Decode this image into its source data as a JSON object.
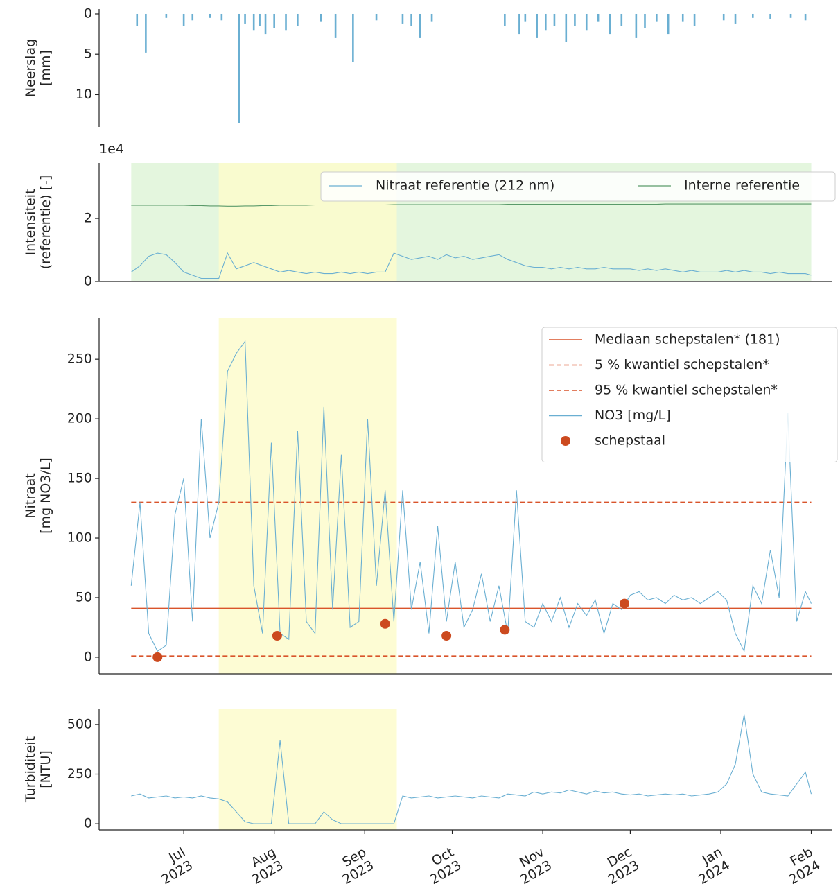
{
  "chart_data": [
    {
      "type": "bar",
      "ylabel": "Neerslag\n[mm]",
      "y_inverted": true,
      "ylim": [
        -0.6,
        14
      ],
      "yticks": [
        0,
        5,
        10
      ],
      "xlim": [
        "2023-06-02",
        "2024-02-08"
      ],
      "color": "#6aafd2",
      "x": [
        "2023-06-15",
        "2023-06-18",
        "2023-06-25",
        "2023-07-01",
        "2023-07-04",
        "2023-07-10",
        "2023-07-14",
        "2023-07-20",
        "2023-07-22",
        "2023-07-25",
        "2023-07-27",
        "2023-07-29",
        "2023-08-01",
        "2023-08-05",
        "2023-08-09",
        "2023-08-17",
        "2023-08-22",
        "2023-08-28",
        "2023-09-05",
        "2023-09-14",
        "2023-09-17",
        "2023-09-20",
        "2023-09-24",
        "2023-10-19",
        "2023-10-24",
        "2023-10-26",
        "2023-10-30",
        "2023-11-02",
        "2023-11-05",
        "2023-11-09",
        "2023-11-12",
        "2023-11-16",
        "2023-11-20",
        "2023-11-24",
        "2023-11-28",
        "2023-12-03",
        "2023-12-06",
        "2023-12-10",
        "2023-12-14",
        "2023-12-19",
        "2023-12-23",
        "2024-01-02",
        "2024-01-06",
        "2024-01-12",
        "2024-01-18",
        "2024-01-25",
        "2024-01-30"
      ],
      "values": [
        1.5,
        4.8,
        0.5,
        1.5,
        0.8,
        0.5,
        0.8,
        13.5,
        1.2,
        2,
        1.5,
        2.5,
        1.8,
        2,
        1.5,
        1,
        3,
        6,
        0.8,
        1.2,
        1.5,
        3,
        1,
        1.5,
        2.5,
        1,
        3,
        2,
        1.5,
        3.5,
        1.5,
        2,
        1,
        2.5,
        1.5,
        3,
        1.8,
        1,
        2.5,
        1,
        1.5,
        0.8,
        1.2,
        0.5,
        0.6,
        0.5,
        0.8
      ]
    },
    {
      "type": "line",
      "ylabel": "Intensiteit\n(referentie) [-]",
      "y_offset_label": "1e4",
      "ylim": [
        0,
        3.76
      ],
      "yticks": [
        0,
        2
      ],
      "xlim": [
        "2023-06-02",
        "2024-02-08"
      ],
      "legend": "upper right",
      "shaded_spans": [
        {
          "start": "2023-06-13",
          "end": "2024-02-01",
          "color": "#dff5d8"
        },
        {
          "start": "2023-07-13",
          "end": "2023-09-12",
          "color": "#fdfccc"
        }
      ],
      "x": [
        "2023-06-13",
        "2023-06-16",
        "2023-06-19",
        "2023-06-22",
        "2023-06-25",
        "2023-06-28",
        "2023-07-01",
        "2023-07-04",
        "2023-07-07",
        "2023-07-10",
        "2023-07-13",
        "2023-07-16",
        "2023-07-19",
        "2023-07-22",
        "2023-07-25",
        "2023-07-28",
        "2023-07-31",
        "2023-08-03",
        "2023-08-06",
        "2023-08-09",
        "2023-08-12",
        "2023-08-15",
        "2023-08-18",
        "2023-08-21",
        "2023-08-24",
        "2023-08-27",
        "2023-08-30",
        "2023-09-02",
        "2023-09-05",
        "2023-09-08",
        "2023-09-11",
        "2023-09-14",
        "2023-09-17",
        "2023-09-20",
        "2023-09-23",
        "2023-09-26",
        "2023-09-29",
        "2023-10-02",
        "2023-10-05",
        "2023-10-08",
        "2023-10-11",
        "2023-10-14",
        "2023-10-17",
        "2023-10-20",
        "2023-10-23",
        "2023-10-26",
        "2023-10-29",
        "2023-11-01",
        "2023-11-04",
        "2023-11-07",
        "2023-11-10",
        "2023-11-13",
        "2023-11-16",
        "2023-11-19",
        "2023-11-22",
        "2023-11-25",
        "2023-11-28",
        "2023-12-01",
        "2023-12-04",
        "2023-12-07",
        "2023-12-10",
        "2023-12-13",
        "2023-12-16",
        "2023-12-19",
        "2023-12-22",
        "2023-12-25",
        "2023-12-28",
        "2023-12-31",
        "2024-01-03",
        "2024-01-06",
        "2024-01-09",
        "2024-01-12",
        "2024-01-15",
        "2024-01-18",
        "2024-01-21",
        "2024-01-24",
        "2024-01-27",
        "2024-01-30",
        "2024-02-01"
      ],
      "series": [
        {
          "name": "Nitraat referentie (212 nm)",
          "color": "#6aafd2",
          "values": [
            0.3,
            0.5,
            0.8,
            0.9,
            0.85,
            0.6,
            0.3,
            0.2,
            0.1,
            0.1,
            0.1,
            0.9,
            0.4,
            0.5,
            0.6,
            0.5,
            0.4,
            0.3,
            0.35,
            0.3,
            0.25,
            0.3,
            0.25,
            0.25,
            0.3,
            0.25,
            0.3,
            0.25,
            0.3,
            0.3,
            0.9,
            0.8,
            0.7,
            0.75,
            0.8,
            0.7,
            0.85,
            0.75,
            0.8,
            0.7,
            0.75,
            0.8,
            0.85,
            0.7,
            0.6,
            0.5,
            0.45,
            0.45,
            0.4,
            0.45,
            0.4,
            0.45,
            0.4,
            0.4,
            0.45,
            0.4,
            0.4,
            0.4,
            0.35,
            0.4,
            0.35,
            0.4,
            0.35,
            0.3,
            0.35,
            0.3,
            0.3,
            0.3,
            0.35,
            0.3,
            0.35,
            0.3,
            0.3,
            0.25,
            0.3,
            0.25,
            0.25,
            0.25,
            0.2
          ]
        },
        {
          "name": "Interne referentie",
          "color": "#5a9a6a",
          "values": [
            2.42,
            2.42,
            2.42,
            2.42,
            2.42,
            2.42,
            2.42,
            2.41,
            2.41,
            2.4,
            2.4,
            2.39,
            2.39,
            2.4,
            2.4,
            2.41,
            2.41,
            2.42,
            2.42,
            2.42,
            2.42,
            2.43,
            2.43,
            2.43,
            2.43,
            2.43,
            2.43,
            2.43,
            2.43,
            2.43,
            2.44,
            2.44,
            2.44,
            2.44,
            2.44,
            2.44,
            2.44,
            2.44,
            2.44,
            2.44,
            2.44,
            2.44,
            2.44,
            2.45,
            2.45,
            2.45,
            2.45,
            2.45,
            2.45,
            2.45,
            2.45,
            2.45,
            2.45,
            2.45,
            2.45,
            2.45,
            2.45,
            2.45,
            2.45,
            2.45,
            2.45,
            2.46,
            2.46,
            2.46,
            2.46,
            2.46,
            2.46,
            2.46,
            2.46,
            2.46,
            2.46,
            2.46,
            2.46,
            2.46,
            2.46,
            2.46,
            2.46,
            2.46,
            2.46
          ]
        }
      ]
    },
    {
      "type": "line",
      "ylabel": "Nitraat\n[mg NO3/L]",
      "ylim": [
        -14,
        285
      ],
      "yticks": [
        0,
        50,
        100,
        150,
        200,
        250
      ],
      "xlim": [
        "2023-06-02",
        "2024-02-08"
      ],
      "legend": "upper right",
      "shaded_spans": [
        {
          "start": "2023-07-13",
          "end": "2023-09-12",
          "color": "#fdfccc"
        }
      ],
      "reference_lines": [
        {
          "name": "Mediaan schepstalen* (181)",
          "value": 41,
          "color": "#d9542b",
          "dashed": false
        },
        {
          "name": "5 % kwantiel schepstalen*",
          "value": 1,
          "color": "#d9542b",
          "dashed": true
        },
        {
          "name": "95 % kwantiel schepstalen*",
          "value": 130,
          "color": "#d9542b",
          "dashed": true
        }
      ],
      "x": [
        "2023-06-13",
        "2023-06-16",
        "2023-06-19",
        "2023-06-22",
        "2023-06-25",
        "2023-06-28",
        "2023-07-01",
        "2023-07-04",
        "2023-07-07",
        "2023-07-10",
        "2023-07-13",
        "2023-07-16",
        "2023-07-19",
        "2023-07-22",
        "2023-07-25",
        "2023-07-28",
        "2023-07-31",
        "2023-08-03",
        "2023-08-06",
        "2023-08-09",
        "2023-08-12",
        "2023-08-15",
        "2023-08-18",
        "2023-08-21",
        "2023-08-24",
        "2023-08-27",
        "2023-08-30",
        "2023-09-02",
        "2023-09-05",
        "2023-09-08",
        "2023-09-11",
        "2023-09-14",
        "2023-09-17",
        "2023-09-20",
        "2023-09-23",
        "2023-09-26",
        "2023-09-29",
        "2023-10-02",
        "2023-10-05",
        "2023-10-08",
        "2023-10-11",
        "2023-10-14",
        "2023-10-17",
        "2023-10-20",
        "2023-10-23",
        "2023-10-26",
        "2023-10-29",
        "2023-11-01",
        "2023-11-04",
        "2023-11-07",
        "2023-11-10",
        "2023-11-13",
        "2023-11-16",
        "2023-11-19",
        "2023-11-22",
        "2023-11-25",
        "2023-11-28",
        "2023-12-01",
        "2023-12-04",
        "2023-12-07",
        "2023-12-10",
        "2023-12-13",
        "2023-12-16",
        "2023-12-19",
        "2023-12-22",
        "2023-12-25",
        "2023-12-28",
        "2023-12-31",
        "2024-01-03",
        "2024-01-06",
        "2024-01-09",
        "2024-01-12",
        "2024-01-15",
        "2024-01-18",
        "2024-01-21",
        "2024-01-24",
        "2024-01-27",
        "2024-01-30",
        "2024-02-01"
      ],
      "series": [
        {
          "name": "NO3 [mg/L]",
          "color": "#6aafd2",
          "values": [
            60,
            130,
            20,
            5,
            10,
            120,
            150,
            30,
            200,
            100,
            130,
            240,
            255,
            265,
            60,
            20,
            180,
            20,
            15,
            190,
            30,
            20,
            210,
            40,
            170,
            25,
            30,
            200,
            60,
            140,
            30,
            140,
            40,
            80,
            20,
            110,
            30,
            80,
            25,
            40,
            70,
            30,
            60,
            20,
            140,
            30,
            25,
            45,
            30,
            50,
            25,
            45,
            35,
            48,
            20,
            45,
            40,
            52,
            55,
            48,
            50,
            45,
            52,
            48,
            50,
            45,
            50,
            55,
            48,
            20,
            5,
            60,
            45,
            90,
            50,
            205,
            30,
            55,
            45
          ]
        }
      ],
      "points": {
        "name": "schepstaal",
        "color": "#cc4a1f",
        "x": [
          "2023-06-22",
          "2023-08-02",
          "2023-09-08",
          "2023-09-29",
          "2023-10-19",
          "2023-11-29"
        ],
        "values": [
          0,
          18,
          28,
          18,
          23,
          45
        ]
      }
    },
    {
      "type": "line",
      "ylabel": "Turbiditeit\n[NTU]",
      "ylim": [
        -31,
        580
      ],
      "yticks": [
        0,
        250,
        500
      ],
      "xlim": [
        "2023-06-02",
        "2024-02-08"
      ],
      "xticks": [
        {
          "value": "2023-07-01",
          "label": "Jul\n2023"
        },
        {
          "value": "2023-08-01",
          "label": "Aug\n2023"
        },
        {
          "value": "2023-09-01",
          "label": "Sep\n2023"
        },
        {
          "value": "2023-10-01",
          "label": "Oct\n2023"
        },
        {
          "value": "2023-11-01",
          "label": "Nov\n2023"
        },
        {
          "value": "2023-12-01",
          "label": "Dec\n2023"
        },
        {
          "value": "2024-01-01",
          "label": "Jan\n2024"
        },
        {
          "value": "2024-02-01",
          "label": "Feb\n2024"
        }
      ],
      "shaded_spans": [
        {
          "start": "2023-07-13",
          "end": "2023-09-12",
          "color": "#fdfccc"
        }
      ],
      "x": [
        "2023-06-13",
        "2023-06-16",
        "2023-06-19",
        "2023-06-22",
        "2023-06-25",
        "2023-06-28",
        "2023-07-01",
        "2023-07-04",
        "2023-07-07",
        "2023-07-10",
        "2023-07-13",
        "2023-07-16",
        "2023-07-19",
        "2023-07-22",
        "2023-07-25",
        "2023-07-28",
        "2023-07-31",
        "2023-08-03",
        "2023-08-06",
        "2023-08-09",
        "2023-08-12",
        "2023-08-15",
        "2023-08-18",
        "2023-08-21",
        "2023-08-24",
        "2023-08-27",
        "2023-08-30",
        "2023-09-02",
        "2023-09-05",
        "2023-09-08",
        "2023-09-11",
        "2023-09-14",
        "2023-09-17",
        "2023-09-20",
        "2023-09-23",
        "2023-09-26",
        "2023-09-29",
        "2023-10-02",
        "2023-10-05",
        "2023-10-08",
        "2023-10-11",
        "2023-10-14",
        "2023-10-17",
        "2023-10-20",
        "2023-10-23",
        "2023-10-26",
        "2023-10-29",
        "2023-11-01",
        "2023-11-04",
        "2023-11-07",
        "2023-11-10",
        "2023-11-13",
        "2023-11-16",
        "2023-11-19",
        "2023-11-22",
        "2023-11-25",
        "2023-11-28",
        "2023-12-01",
        "2023-12-04",
        "2023-12-07",
        "2023-12-10",
        "2023-12-13",
        "2023-12-16",
        "2023-12-19",
        "2023-12-22",
        "2023-12-25",
        "2023-12-28",
        "2023-12-31",
        "2024-01-03",
        "2024-01-06",
        "2024-01-09",
        "2024-01-12",
        "2024-01-15",
        "2024-01-18",
        "2024-01-21",
        "2024-01-24",
        "2024-01-27",
        "2024-01-30",
        "2024-02-01"
      ],
      "series": [
        {
          "name": "Turbiditeit",
          "color": "#6aafd2",
          "values": [
            140,
            150,
            130,
            135,
            140,
            130,
            135,
            130,
            140,
            130,
            125,
            110,
            60,
            10,
            0,
            0,
            0,
            420,
            0,
            0,
            0,
            0,
            60,
            20,
            0,
            0,
            0,
            0,
            0,
            0,
            0,
            140,
            130,
            135,
            140,
            130,
            135,
            140,
            135,
            130,
            140,
            135,
            130,
            150,
            145,
            140,
            160,
            150,
            160,
            155,
            170,
            160,
            150,
            165,
            155,
            160,
            150,
            145,
            150,
            140,
            145,
            150,
            145,
            150,
            140,
            145,
            150,
            160,
            200,
            300,
            550,
            250,
            160,
            150,
            145,
            140,
            200,
            260,
            150
          ]
        }
      ]
    }
  ]
}
